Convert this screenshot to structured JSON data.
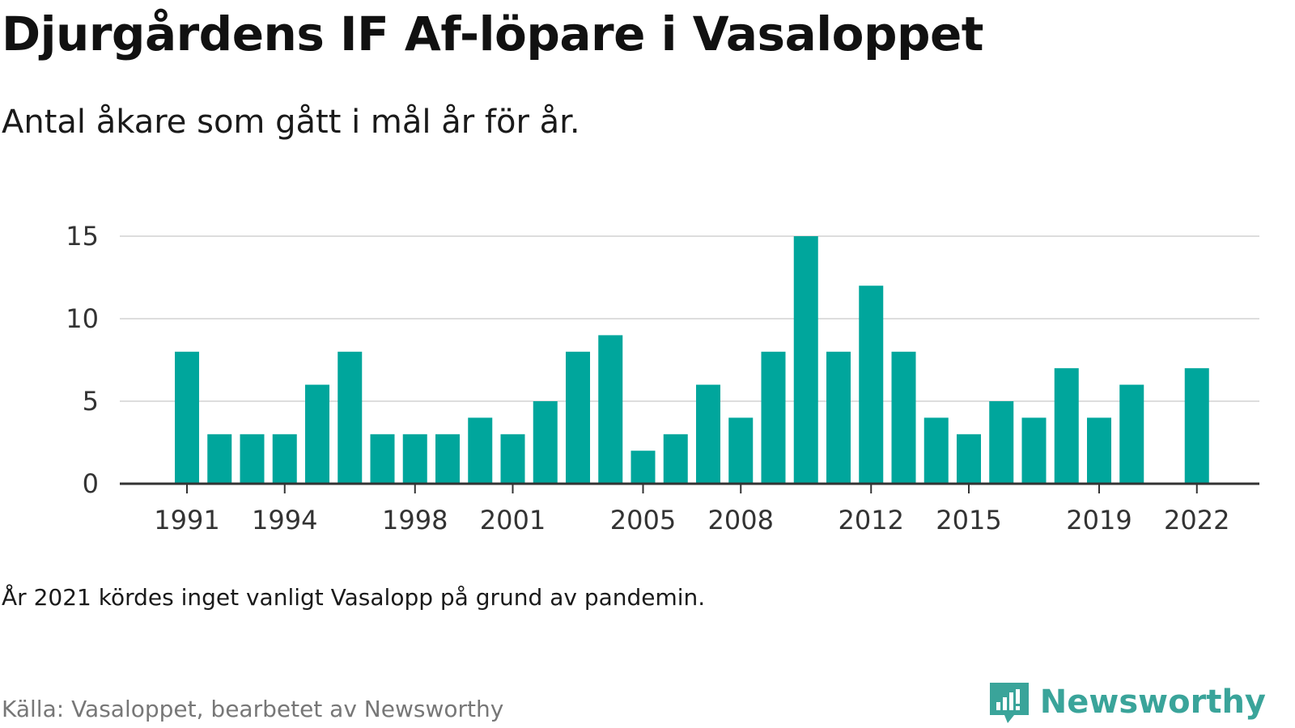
{
  "title": "Djurgårdens IF Af-löpare i Vasaloppet",
  "subtitle": "Antal åkare som gått i mål år för år.",
  "note": "År 2021 kördes inget vanligt Vasalopp på grund av pandemin.",
  "source": "Källa: Vasaloppet, bearbetet av Newsworthy",
  "brand": {
    "name": "Newsworthy",
    "logo_icon": "bar-chart-speech-bubble-icon",
    "color": "#3aa49a"
  },
  "chart_data": {
    "type": "bar",
    "categories": [
      1991,
      1992,
      1993,
      1994,
      1995,
      1996,
      1997,
      1998,
      1999,
      2000,
      2001,
      2002,
      2003,
      2004,
      2005,
      2006,
      2007,
      2008,
      2009,
      2010,
      2011,
      2012,
      2013,
      2014,
      2015,
      2016,
      2017,
      2018,
      2019,
      2020,
      2021,
      2022
    ],
    "values": [
      8,
      3,
      3,
      3,
      6,
      8,
      3,
      3,
      3,
      4,
      3,
      5,
      8,
      9,
      2,
      3,
      6,
      4,
      8,
      15,
      8,
      12,
      8,
      4,
      3,
      5,
      4,
      7,
      4,
      6,
      null,
      7
    ],
    "x_tick_labels": [
      "1991",
      "1994",
      "1998",
      "2001",
      "2005",
      "2008",
      "2012",
      "2015",
      "2019",
      "2022"
    ],
    "y_ticks": [
      0,
      5,
      10,
      15
    ],
    "ylim": [
      0,
      15
    ],
    "grid": true,
    "bar_color": "#00a69c"
  }
}
